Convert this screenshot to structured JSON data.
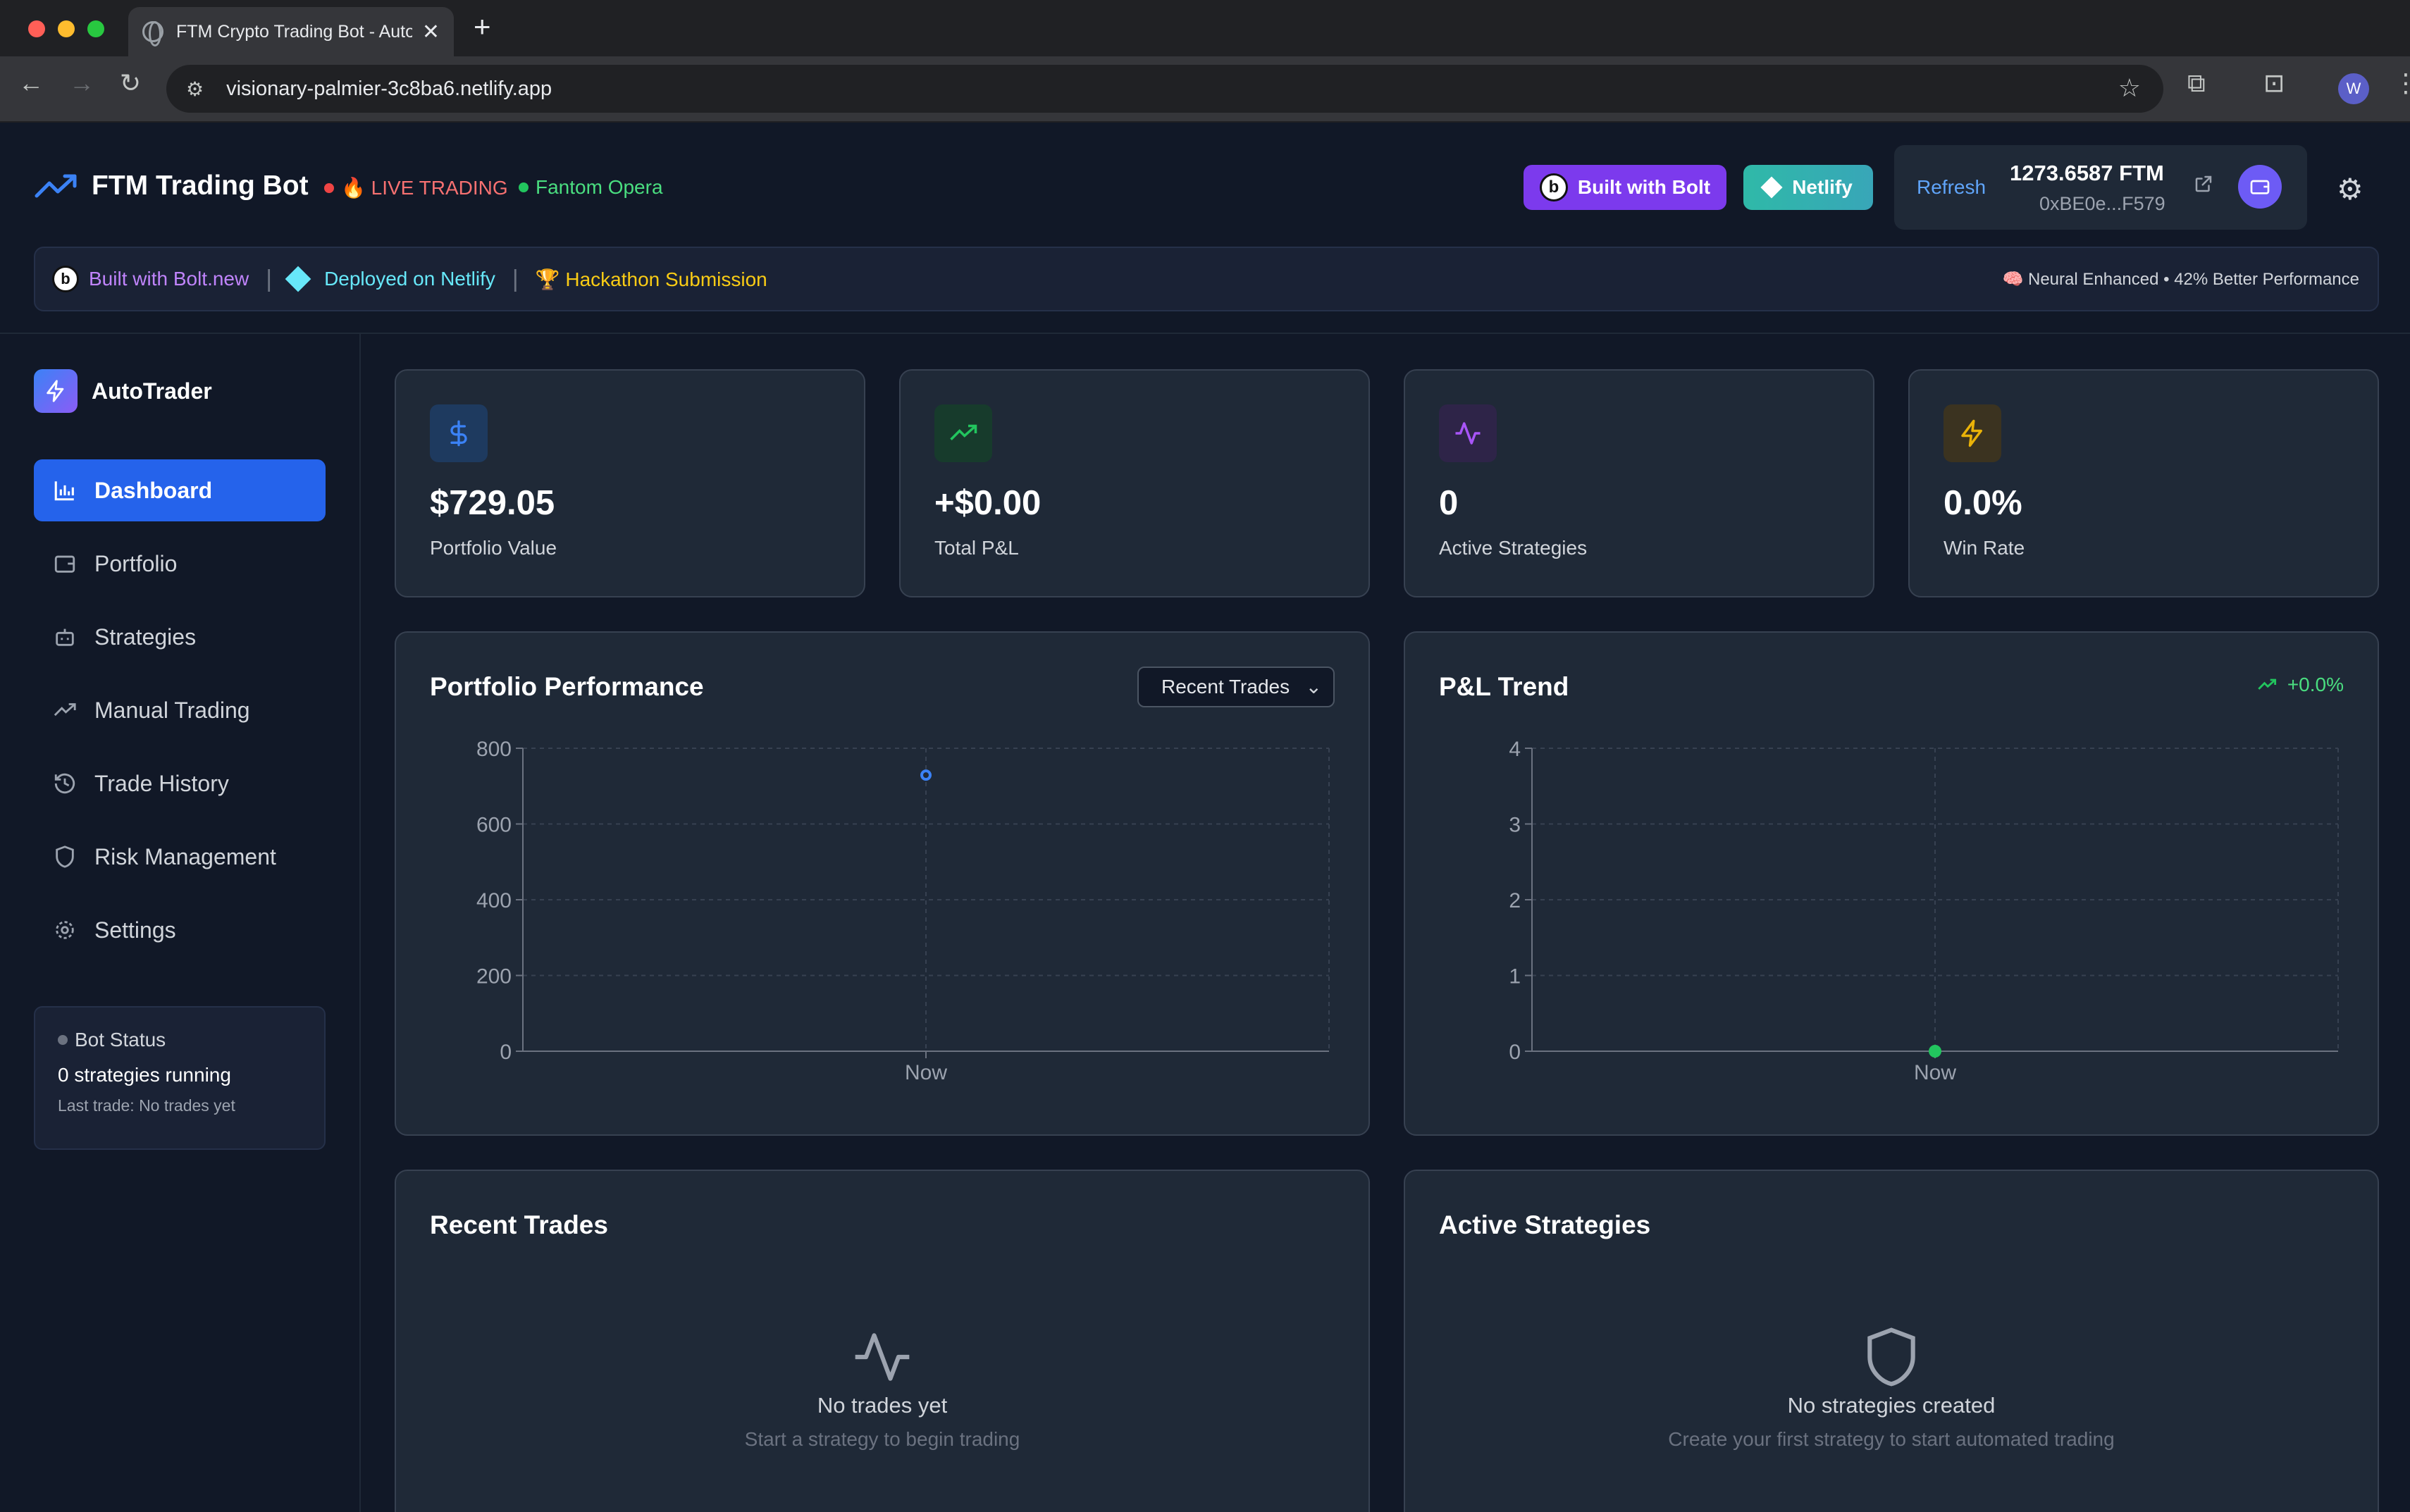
{
  "browser": {
    "tab_title": "FTM Crypto Trading Bot - AutoTrader",
    "url": "visionary-palmier-3c8ba6.netlify.app",
    "profile_initial": "W"
  },
  "header": {
    "app_name": "FTM Trading Bot",
    "live_label": "🔥 LIVE TRADING",
    "network_label": "Fantom Opera",
    "bolt_button": "Built with Bolt",
    "netlify_button": "Netlify",
    "wallet": {
      "refresh_label": "Refresh",
      "balance": "1273.6587 FTM",
      "address": "0xBE0e...F579"
    }
  },
  "banner": {
    "bolt": "Built with Bolt.new",
    "netlify": "Deployed on Netlify",
    "hackathon": "🏆 Hackathon Submission",
    "right": "🧠 Neural Enhanced • 42% Better Performance"
  },
  "sidebar": {
    "logo": "AutoTrader",
    "items": [
      {
        "label": "Dashboard",
        "icon": "bar-chart-icon",
        "active": true
      },
      {
        "label": "Portfolio",
        "icon": "wallet-icon",
        "active": false
      },
      {
        "label": "Strategies",
        "icon": "bot-icon",
        "active": false
      },
      {
        "label": "Manual Trading",
        "icon": "trending-up-icon",
        "active": false
      },
      {
        "label": "Trade History",
        "icon": "history-icon",
        "active": false
      },
      {
        "label": "Risk Management",
        "icon": "shield-icon",
        "active": false
      },
      {
        "label": "Settings",
        "icon": "gear-icon",
        "active": false
      }
    ],
    "bot_status": {
      "title": "Bot Status",
      "running": "0 strategies running",
      "last_trade": "Last trade: No trades yet"
    }
  },
  "stats": [
    {
      "value": "$729.05",
      "label": "Portfolio Value",
      "icon": "dollar-icon",
      "color": "#3b82f6"
    },
    {
      "value": "+$0.00",
      "label": "Total P&L",
      "icon": "trending-up-icon",
      "color": "#22c55e"
    },
    {
      "value": "0",
      "label": "Active Strategies",
      "icon": "activity-icon",
      "color": "#a855f7"
    },
    {
      "value": "0.0%",
      "label": "Win Rate",
      "icon": "zap-icon",
      "color": "#eab308"
    }
  ],
  "performance": {
    "title": "Portfolio Performance",
    "select_value": "Recent Trades"
  },
  "pnl": {
    "title": "P&L Trend",
    "trend": "+0.0%"
  },
  "recent_trades": {
    "title": "Recent Trades",
    "empty_title": "No trades yet",
    "empty_sub": "Start a strategy to begin trading"
  },
  "active_strategies": {
    "title": "Active Strategies",
    "empty_title": "No strategies created",
    "empty_sub": "Create your first strategy to start automated trading"
  },
  "chart_data": [
    {
      "type": "line",
      "title": "Portfolio Performance",
      "x": [
        "Now"
      ],
      "series": [
        {
          "values": [
            729.05
          ],
          "color": "#3b82f6"
        }
      ],
      "y_ticks": [
        0,
        200,
        400,
        600,
        800
      ],
      "ylim": [
        0,
        800
      ],
      "grid": true
    },
    {
      "type": "line",
      "title": "P&L Trend",
      "x": [
        "Now"
      ],
      "series": [
        {
          "values": [
            0
          ],
          "color": "#22c55e"
        }
      ],
      "y_ticks": [
        0,
        1,
        2,
        3,
        4
      ],
      "ylim": [
        0,
        4
      ],
      "grid": true
    }
  ]
}
